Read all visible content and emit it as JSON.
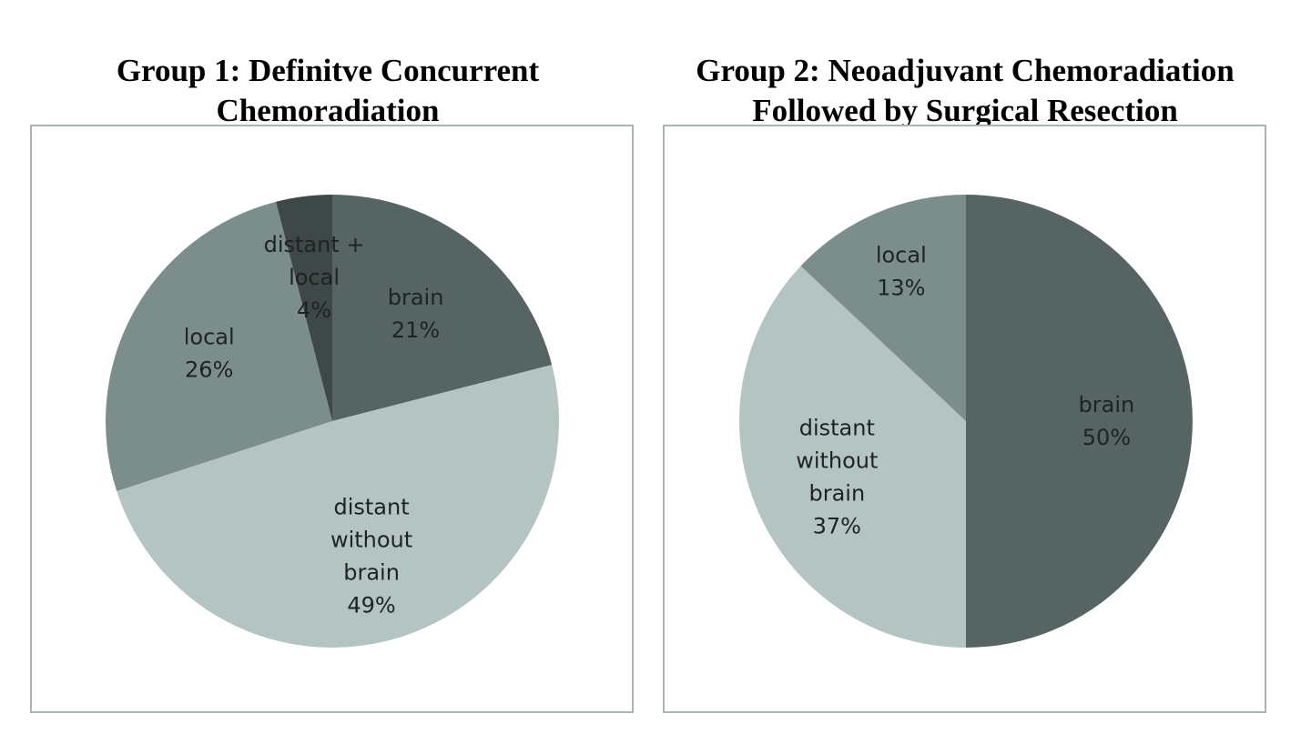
{
  "chart_data": [
    {
      "type": "pie",
      "title_lines": [
        "Group 1: Definitve Concurrent",
        "Chemoradiation"
      ],
      "slices": [
        {
          "label_lines": [
            "brain"
          ],
          "value": 21,
          "value_label": "21%",
          "color": "#566563"
        },
        {
          "label_lines": [
            "distant",
            "without",
            "brain"
          ],
          "value": 49,
          "value_label": "49%",
          "color": "#b4c4c2"
        },
        {
          "label_lines": [
            "local"
          ],
          "value": 26,
          "value_label": "26%",
          "color": "#7c8e8c"
        },
        {
          "label_lines": [
            "distant +",
            "local"
          ],
          "value": 4,
          "value_label": "4%",
          "color": "#3d4847"
        }
      ]
    },
    {
      "type": "pie",
      "title_lines": [
        "Group 2: Neoadjuvant Chemoradiation",
        "Followed by Surgical Resection"
      ],
      "slices": [
        {
          "label_lines": [
            "brain"
          ],
          "value": 50,
          "value_label": "50%",
          "color": "#566563"
        },
        {
          "label_lines": [
            "distant",
            "without",
            "brain"
          ],
          "value": 37,
          "value_label": "37%",
          "color": "#b4c4c2"
        },
        {
          "label_lines": [
            "local"
          ],
          "value": 13,
          "value_label": "13%",
          "color": "#7c8e8c"
        }
      ]
    }
  ]
}
